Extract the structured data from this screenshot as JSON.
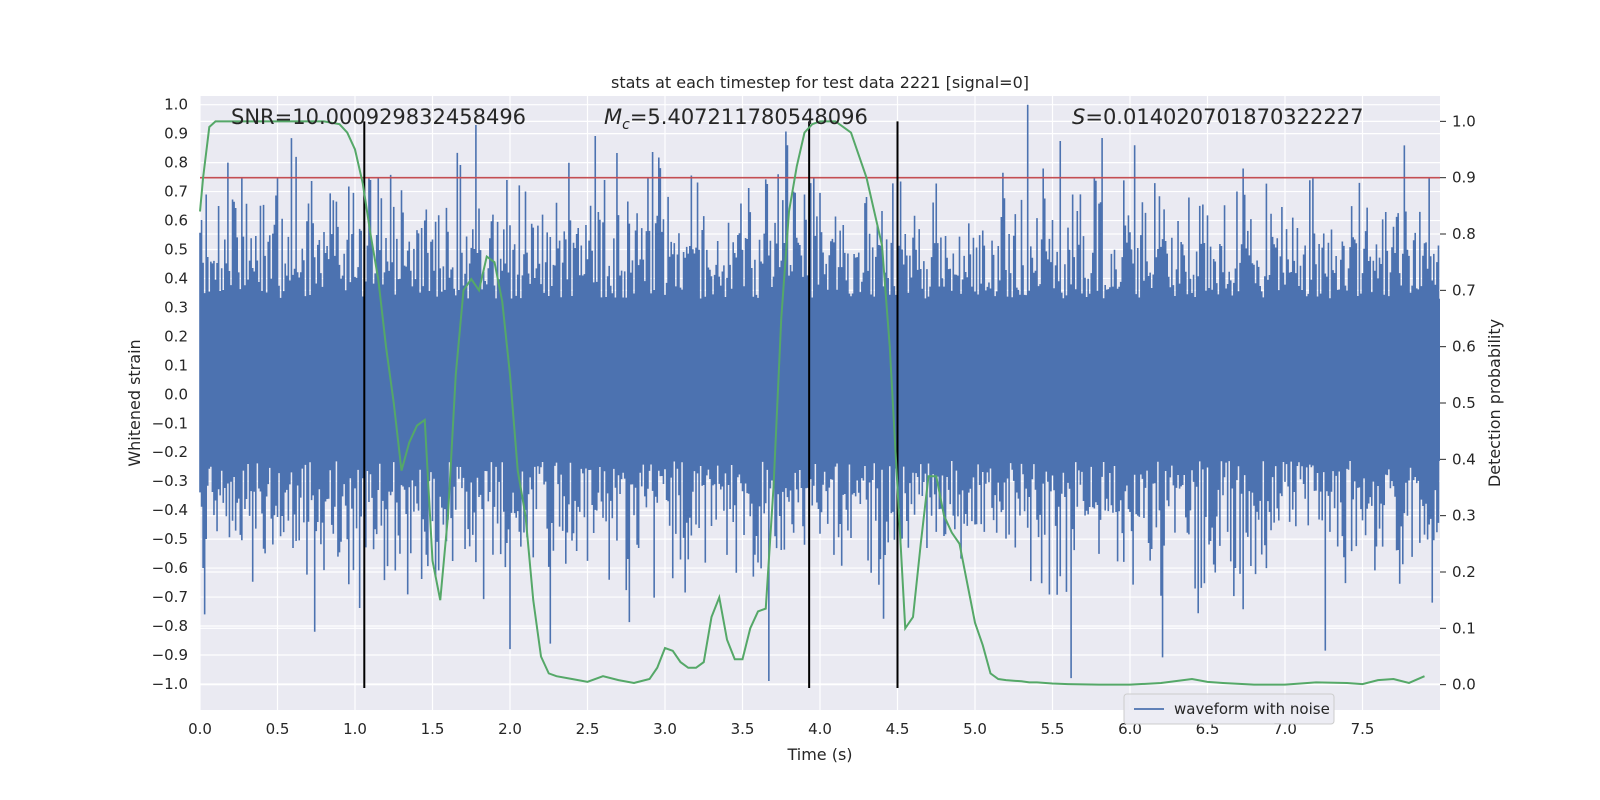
{
  "chart_data": {
    "type": "line",
    "title": "stats at each timestep for test data 2221 [signal=0]",
    "xlabel": "Time (s)",
    "ylabel": "Whitened strain",
    "y2label": "Detection probability",
    "xlim": [
      0.0,
      8.0
    ],
    "ylim": [
      -1.09,
      1.03
    ],
    "y2lim": [
      -0.045,
      1.045
    ],
    "xticks": [
      0.0,
      0.5,
      1.0,
      1.5,
      2.0,
      2.5,
      3.0,
      3.5,
      4.0,
      4.5,
      5.0,
      5.5,
      6.0,
      6.5,
      7.0,
      7.5
    ],
    "xtick_labels": [
      "0.0",
      "0.5",
      "1.0",
      "1.5",
      "2.0",
      "2.5",
      "3.0",
      "3.5",
      "4.0",
      "4.5",
      "5.0",
      "5.5",
      "6.0",
      "6.5",
      "7.0",
      "7.5"
    ],
    "yticks": [
      1.0,
      0.9,
      0.8,
      0.7,
      0.6,
      0.5,
      0.4,
      0.3,
      0.2,
      0.1,
      0.0,
      -0.1,
      -0.2,
      -0.3,
      -0.4,
      -0.5,
      -0.6,
      -0.7,
      -0.8,
      -0.9,
      -1.0
    ],
    "ytick_labels": [
      "1.0",
      "0.9",
      "0.8",
      "0.7",
      "0.6",
      "0.5",
      "0.4",
      "0.3",
      "0.2",
      "0.1",
      "0.0",
      "−0.1",
      "−0.2",
      "−0.3",
      "−0.4",
      "−0.5",
      "−0.6",
      "−0.7",
      "−0.8",
      "−0.9",
      "−1.0"
    ],
    "y2ticks": [
      1.0,
      0.9,
      0.8,
      0.7,
      0.6,
      0.5,
      0.4,
      0.3,
      0.2,
      0.1,
      0.0
    ],
    "y2tick_labels": [
      "1.0",
      "0.9",
      "0.8",
      "0.7",
      "0.6",
      "0.5",
      "0.4",
      "0.3",
      "0.2",
      "0.1",
      "0.0"
    ],
    "annotations": {
      "snr": "SNR=10.000929832458496",
      "mc_symbol": "M",
      "mc_sub": "c",
      "mc_value": "=5.407211780548096",
      "s_symbol": "S",
      "s_value": "=0.014020701870322227"
    },
    "legend": {
      "label": "waveform with noise",
      "position": "lower-right"
    },
    "threshold": {
      "y2": 0.9,
      "color": "#c44e52"
    },
    "vlines_x": [
      1.06,
      3.93,
      4.5
    ],
    "waveform": {
      "name": "waveform with noise",
      "color": "#4c72b0",
      "n_samples": 800,
      "band": [
        -0.23,
        0.33
      ],
      "noise_sigma": 0.2,
      "clip": [
        -1.0,
        1.0
      ],
      "peaks": [
        [
          0.03,
          -0.76
        ],
        [
          0.04,
          0.69
        ],
        [
          0.12,
          0.65
        ],
        [
          0.18,
          0.8
        ],
        [
          0.5,
          0.75
        ],
        [
          0.62,
          0.82
        ],
        [
          0.74,
          -0.82
        ],
        [
          0.86,
          0.67
        ],
        [
          1.1,
          0.74
        ],
        [
          1.78,
          0.93
        ],
        [
          1.98,
          0.74
        ],
        [
          2.0,
          -0.88
        ],
        [
          3.73,
          0.76
        ],
        [
          3.79,
          0.86
        ],
        [
          3.9,
          0.69
        ],
        [
          5.62,
          -0.98
        ],
        [
          6.03,
          0.86
        ],
        [
          7.48,
          0.73
        ],
        [
          7.93,
          0.75
        ]
      ]
    },
    "probability": {
      "name": "Detection probability",
      "color": "#55a868",
      "x": [
        0.0,
        0.02,
        0.06,
        0.1,
        0.2,
        0.4,
        0.6,
        0.8,
        0.9,
        0.95,
        1.0,
        1.05,
        1.1,
        1.15,
        1.2,
        1.25,
        1.3,
        1.35,
        1.4,
        1.45,
        1.5,
        1.55,
        1.6,
        1.65,
        1.7,
        1.75,
        1.8,
        1.85,
        1.9,
        1.95,
        2.0,
        2.05,
        2.1,
        2.15,
        2.2,
        2.25,
        2.3,
        2.4,
        2.5,
        2.6,
        2.7,
        2.8,
        2.9,
        2.95,
        3.0,
        3.05,
        3.1,
        3.15,
        3.2,
        3.25,
        3.3,
        3.35,
        3.4,
        3.45,
        3.5,
        3.55,
        3.6,
        3.65,
        3.7,
        3.75,
        3.8,
        3.85,
        3.9,
        3.95,
        4.0,
        4.05,
        4.1,
        4.2,
        4.3,
        4.4,
        4.45,
        4.5,
        4.55,
        4.6,
        4.65,
        4.7,
        4.75,
        4.8,
        4.85,
        4.9,
        4.95,
        5.0,
        5.05,
        5.1,
        5.15,
        5.2,
        5.25,
        5.3,
        5.35,
        5.4,
        5.5,
        5.6,
        5.8,
        6.0,
        6.2,
        6.4,
        6.5,
        6.6,
        6.8,
        7.0,
        7.2,
        7.4,
        7.5,
        7.6,
        7.7,
        7.8,
        7.9
      ],
      "y": [
        0.84,
        0.9,
        0.99,
        1.0,
        1.0,
        1.0,
        1.0,
        1.0,
        0.995,
        0.98,
        0.95,
        0.89,
        0.8,
        0.72,
        0.6,
        0.5,
        0.38,
        0.43,
        0.46,
        0.47,
        0.22,
        0.15,
        0.3,
        0.55,
        0.7,
        0.72,
        0.7,
        0.76,
        0.75,
        0.68,
        0.55,
        0.38,
        0.3,
        0.15,
        0.05,
        0.02,
        0.015,
        0.01,
        0.005,
        0.015,
        0.008,
        0.003,
        0.01,
        0.03,
        0.065,
        0.06,
        0.04,
        0.03,
        0.03,
        0.04,
        0.12,
        0.155,
        0.08,
        0.045,
        0.045,
        0.1,
        0.13,
        0.135,
        0.35,
        0.65,
        0.84,
        0.92,
        0.98,
        0.995,
        1.0,
        1.0,
        1.0,
        0.98,
        0.9,
        0.78,
        0.6,
        0.35,
        0.1,
        0.12,
        0.25,
        0.37,
        0.37,
        0.3,
        0.27,
        0.25,
        0.18,
        0.11,
        0.07,
        0.02,
        0.01,
        0.008,
        0.007,
        0.006,
        0.004,
        0.004,
        0.002,
        0.001,
        0.0,
        0.0,
        0.003,
        0.01,
        0.005,
        0.003,
        0.0,
        0.0,
        0.004,
        0.003,
        0.001,
        0.008,
        0.01,
        0.003,
        0.015
      ]
    }
  }
}
